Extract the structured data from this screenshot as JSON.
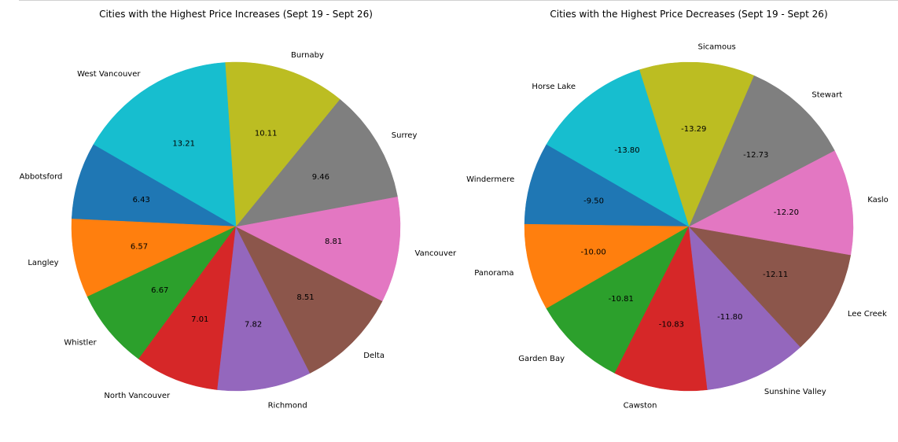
{
  "chart_data": [
    {
      "type": "pie",
      "title": "Cities with the Highest Price Increases (Sept 19 - Sept 26)",
      "categories": [
        "Abbotsford",
        "Langley",
        "Whistler",
        "North Vancouver",
        "Richmond",
        "Delta",
        "Vancouver",
        "Surrey",
        "Burnaby",
        "West Vancouver"
      ],
      "values": [
        6.43,
        6.57,
        6.67,
        7.01,
        7.82,
        8.51,
        8.81,
        9.46,
        10.11,
        13.21
      ],
      "value_labels": [
        "6.43",
        "6.57",
        "6.67",
        "7.01",
        "7.82",
        "8.51",
        "8.81",
        "9.46",
        "10.11",
        "13.21"
      ],
      "colors": [
        "#1f77b4",
        "#ff7f0e",
        "#2ca02c",
        "#d62728",
        "#9467bd",
        "#8c564b",
        "#e377c2",
        "#7f7f7f",
        "#bcbd22",
        "#17becf"
      ],
      "start_angle_deg": 150,
      "direction": "counterclockwise"
    },
    {
      "type": "pie",
      "title": "Cities with the Highest Price Decreases (Sept 19 - Sept 26)",
      "categories": [
        "Windermere",
        "Panorama",
        "Garden Bay",
        "Cawston",
        "Sunshine Valley",
        "Lee Creek",
        "Kaslo",
        "Stewart",
        "Sicamous",
        "Horse Lake"
      ],
      "values": [
        -9.5,
        -10.0,
        -10.81,
        -10.83,
        -11.8,
        -12.11,
        -12.2,
        -12.73,
        -13.29,
        -13.8
      ],
      "value_labels": [
        "-9.50",
        "-10.00",
        "-10.81",
        "-10.83",
        "-11.80",
        "-12.11",
        "-12.20",
        "-12.73",
        "-13.29",
        "-13.80"
      ],
      "colors": [
        "#1f77b4",
        "#ff7f0e",
        "#2ca02c",
        "#d62728",
        "#9467bd",
        "#8c564b",
        "#e377c2",
        "#7f7f7f",
        "#bcbd22",
        "#17becf"
      ],
      "start_angle_deg": 150,
      "direction": "counterclockwise"
    }
  ]
}
